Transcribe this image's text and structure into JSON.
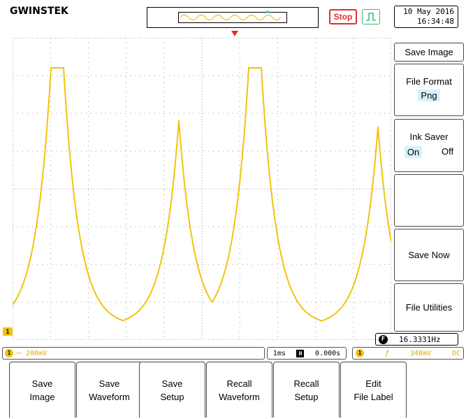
{
  "header": {
    "brand": "GWINSTEK",
    "run_state": "Stop",
    "date": "10 May 2016",
    "time": "16:34:48"
  },
  "side_menu": {
    "title": "Save Image",
    "file_format": {
      "label": "File Format",
      "value": "Png"
    },
    "ink_saver": {
      "label": "Ink Saver",
      "on": "On",
      "off": "Off",
      "selected": "On"
    },
    "save_now": "Save Now",
    "file_utilities": "File Utilities"
  },
  "status": {
    "frequency": "16.3331Hz",
    "ch1_scale": "200mV",
    "timebase": "1ms",
    "horizontal_position": "0.000s",
    "trigger_level": "348mV",
    "trigger_coupling": "DC"
  },
  "bottom_menu": [
    {
      "line1": "Save",
      "line2": "Image"
    },
    {
      "line1": "Save",
      "line2": "Waveform"
    },
    {
      "line1": "Save",
      "line2": "Setup"
    },
    {
      "line1": "Recall",
      "line2": "Waveform"
    },
    {
      "line1": "Recall",
      "line2": "Setup"
    },
    {
      "line1": "Edit",
      "line2": "File Label"
    }
  ],
  "colors": {
    "trace": "#f2c40c",
    "stop": "#e03030",
    "highlight": "#d7f1fb",
    "trigger_marker": "#e03030"
  },
  "icons": {
    "channel_marker": "ch1-marker-icon",
    "trigger_mode": "edge-trigger-icon",
    "frequency_counter": "f-badge-icon"
  }
}
